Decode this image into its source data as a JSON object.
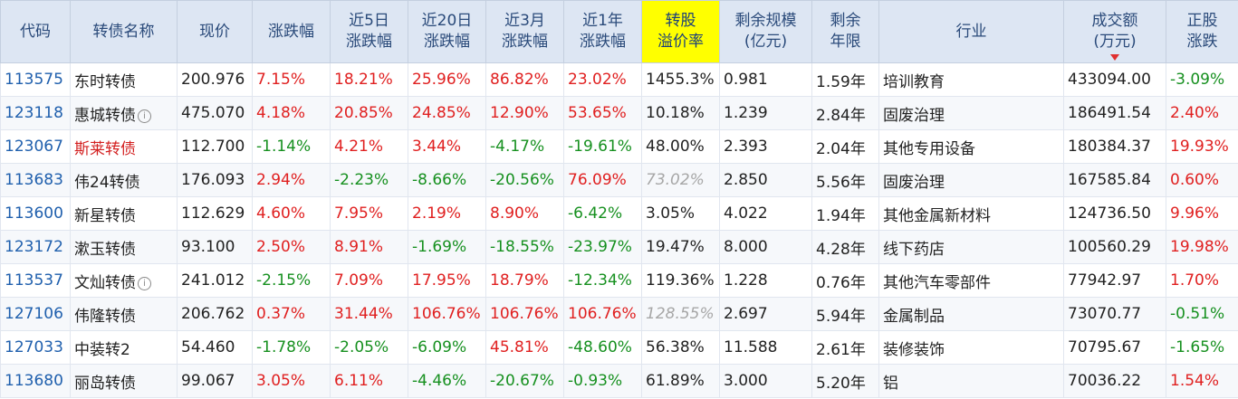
{
  "columns": {
    "code": "代码",
    "name": "转债名称",
    "price": "现价",
    "change": "涨跌幅",
    "change_5d": "近5日\n涨跌幅",
    "change_20d": "近20日\n涨跌幅",
    "change_3m": "近3月\n涨跌幅",
    "change_1y": "近1年\n涨跌幅",
    "premium": "转股\n溢价率",
    "remaining_scale": "剩余规模\n(亿元)",
    "remaining_years": "剩余\n年限",
    "industry": "行业",
    "volume": "成交额\n(万元)",
    "stock_change": "正股\n涨跌"
  },
  "rows": [
    {
      "code": "113575",
      "name": "东时转债",
      "info": false,
      "name_red": false,
      "price": "200.976",
      "change": "7.15%",
      "change_5d": "18.21%",
      "change_20d": "25.96%",
      "change_3m": "86.82%",
      "change_1y": "23.02%",
      "premium": "1455.3%",
      "premium_gray": false,
      "remaining_scale": "0.981",
      "remaining_years": "1.59年",
      "industry": "培训教育",
      "volume": "433094.00",
      "stock_change": "-3.09%"
    },
    {
      "code": "123118",
      "name": "惠城转债",
      "info": true,
      "name_red": false,
      "price": "475.070",
      "change": "4.18%",
      "change_5d": "20.85%",
      "change_20d": "24.85%",
      "change_3m": "12.90%",
      "change_1y": "53.65%",
      "premium": "10.18%",
      "premium_gray": false,
      "remaining_scale": "1.239",
      "remaining_years": "2.84年",
      "industry": "固废治理",
      "volume": "186491.54",
      "stock_change": "2.40%"
    },
    {
      "code": "123067",
      "name": "斯莱转债",
      "info": false,
      "name_red": true,
      "price": "112.700",
      "change": "-1.14%",
      "change_5d": "4.21%",
      "change_20d": "3.44%",
      "change_3m": "-4.17%",
      "change_1y": "-19.61%",
      "premium": "48.00%",
      "premium_gray": false,
      "remaining_scale": "2.393",
      "remaining_years": "2.04年",
      "industry": "其他专用设备",
      "volume": "180384.37",
      "stock_change": "19.93%"
    },
    {
      "code": "113683",
      "name": "伟24转债",
      "info": false,
      "name_red": false,
      "price": "176.093",
      "change": "2.94%",
      "change_5d": "-2.23%",
      "change_20d": "-8.66%",
      "change_3m": "-20.56%",
      "change_1y": "76.09%",
      "premium": "73.02%",
      "premium_gray": true,
      "remaining_scale": "2.850",
      "remaining_years": "5.56年",
      "industry": "固废治理",
      "volume": "167585.84",
      "stock_change": "0.60%"
    },
    {
      "code": "113600",
      "name": "新星转债",
      "info": false,
      "name_red": false,
      "price": "112.629",
      "change": "4.60%",
      "change_5d": "7.95%",
      "change_20d": "2.19%",
      "change_3m": "8.90%",
      "change_1y": "-6.42%",
      "premium": "3.05%",
      "premium_gray": false,
      "remaining_scale": "4.022",
      "remaining_years": "1.94年",
      "industry": "其他金属新材料",
      "volume": "124736.50",
      "stock_change": "9.96%"
    },
    {
      "code": "123172",
      "name": "漱玉转债",
      "info": false,
      "name_red": false,
      "price": "93.100",
      "change": "2.50%",
      "change_5d": "8.91%",
      "change_20d": "-1.69%",
      "change_3m": "-18.55%",
      "change_1y": "-23.97%",
      "premium": "19.47%",
      "premium_gray": false,
      "remaining_scale": "8.000",
      "remaining_years": "4.28年",
      "industry": "线下药店",
      "volume": "100560.29",
      "stock_change": "19.98%"
    },
    {
      "code": "113537",
      "name": "文灿转债",
      "info": true,
      "name_red": false,
      "price": "241.012",
      "change": "-2.15%",
      "change_5d": "7.09%",
      "change_20d": "17.95%",
      "change_3m": "18.79%",
      "change_1y": "-12.34%",
      "premium": "119.36%",
      "premium_gray": false,
      "remaining_scale": "1.228",
      "remaining_years": "0.76年",
      "industry": "其他汽车零部件",
      "volume": "77942.97",
      "stock_change": "1.70%"
    },
    {
      "code": "127106",
      "name": "伟隆转债",
      "info": false,
      "name_red": false,
      "price": "206.762",
      "change": "0.37%",
      "change_5d": "31.44%",
      "change_20d": "106.76%",
      "change_3m": "106.76%",
      "change_1y": "106.76%",
      "premium": "128.55%",
      "premium_gray": true,
      "remaining_scale": "2.697",
      "remaining_years": "5.94年",
      "industry": "金属制品",
      "volume": "73070.77",
      "stock_change": "-0.51%"
    },
    {
      "code": "127033",
      "name": "中装转2",
      "info": false,
      "name_red": false,
      "price": "54.460",
      "change": "-1.78%",
      "change_5d": "-2.05%",
      "change_20d": "-6.09%",
      "change_3m": "45.81%",
      "change_1y": "-48.60%",
      "premium": "56.38%",
      "premium_gray": false,
      "remaining_scale": "11.588",
      "remaining_years": "2.61年",
      "industry": "装修装饰",
      "volume": "70795.67",
      "stock_change": "-1.65%"
    },
    {
      "code": "113680",
      "name": "丽岛转债",
      "info": false,
      "name_red": false,
      "price": "99.067",
      "change": "3.05%",
      "change_5d": "6.11%",
      "change_20d": "-4.46%",
      "change_3m": "-20.67%",
      "change_1y": "-0.93%",
      "premium": "61.89%",
      "premium_gray": false,
      "remaining_scale": "3.000",
      "remaining_years": "5.20年",
      "industry": "铝",
      "volume": "70036.22",
      "stock_change": "1.54%"
    }
  ],
  "colors": {
    "header_bg": "#dde6f3",
    "header_text": "#2a4a7a",
    "highlight_header": "#ffff00",
    "up": "#e02020",
    "down": "#16901f",
    "code": "#1f5fad",
    "sort_arrow": "#e03030"
  },
  "icons": {
    "info": "info-circle-icon",
    "sort": "sort-desc-icon"
  },
  "sort": {
    "column": "volume",
    "direction": "desc"
  }
}
